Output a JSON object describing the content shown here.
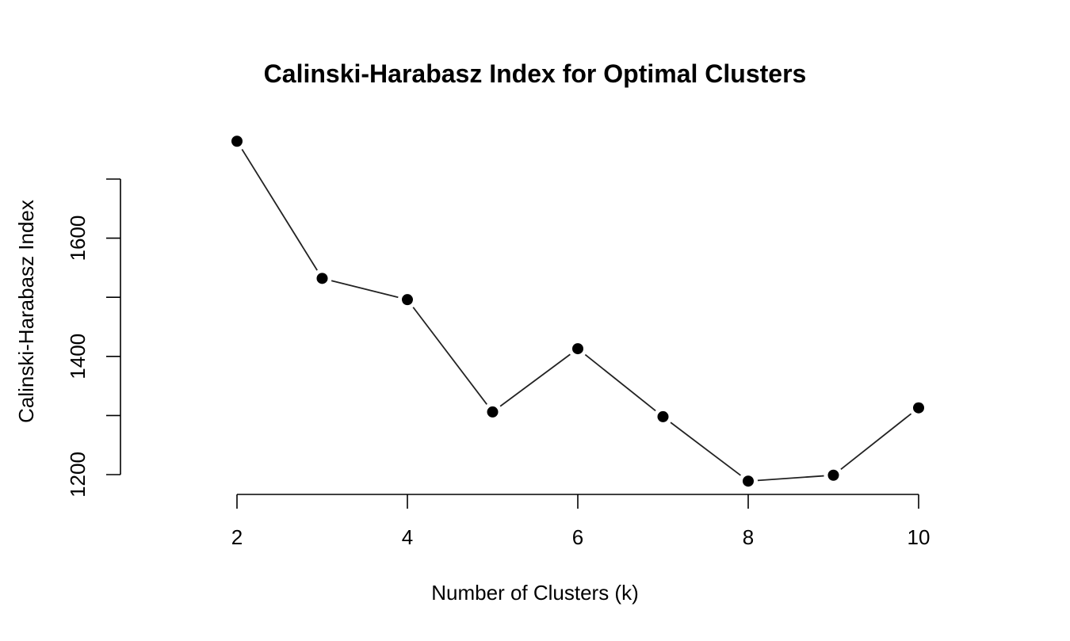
{
  "chart_data": {
    "type": "line",
    "title": "Calinski-Harabasz Index for Optimal Clusters",
    "xlabel": "Number of Clusters (k)",
    "ylabel": "Calinski-Harabasz Index",
    "x": [
      2,
      3,
      4,
      5,
      6,
      7,
      8,
      9,
      10
    ],
    "series": [
      {
        "values": [
          1764,
          1532,
          1496,
          1306,
          1413,
          1298,
          1189,
          1199,
          1313
        ]
      }
    ],
    "xlim": [
      2,
      10
    ],
    "ylim": [
      1200,
      1700
    ],
    "x_ticks": [
      2,
      4,
      6,
      8,
      10
    ],
    "y_ticks": [
      1200,
      1400,
      1600
    ],
    "y_tick_marks": [
      1200,
      1300,
      1400,
      1500,
      1600,
      1700
    ],
    "markers": "filled-circle",
    "grid": false,
    "colors": {
      "line": "#222222",
      "marker": "#000000",
      "axis": "#000000"
    }
  }
}
